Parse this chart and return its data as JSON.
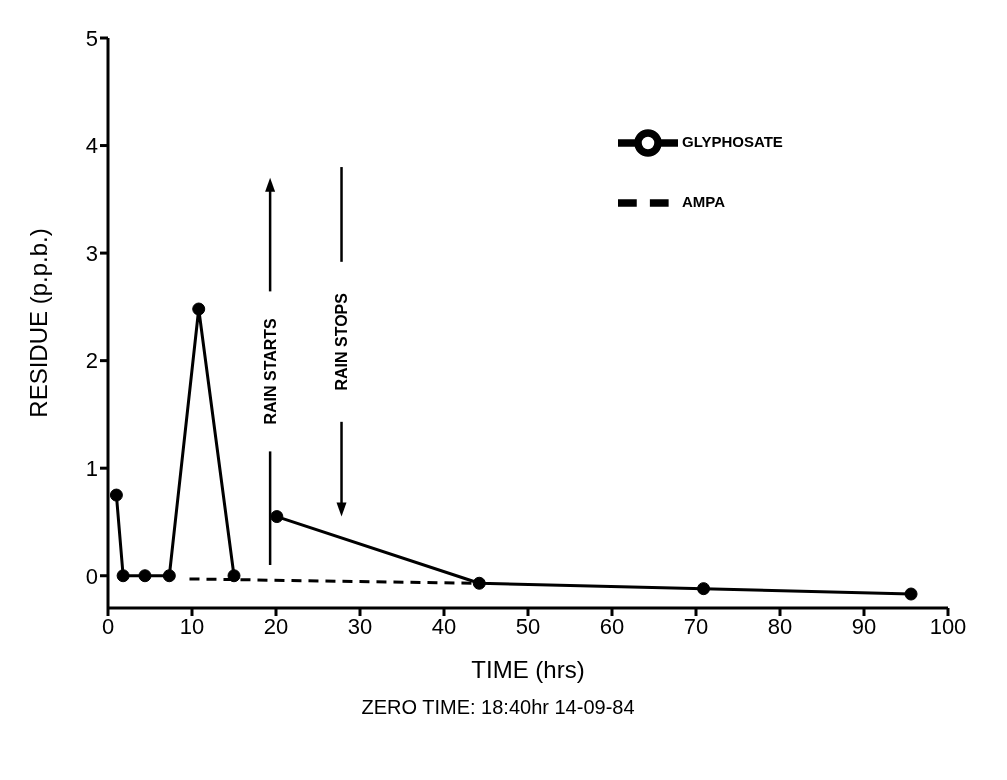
{
  "chart_data": {
    "type": "line",
    "xlabel": "TIME (hrs)",
    "ylabel": "RESIDUE (p.p.b.)",
    "xlim": [
      0,
      100
    ],
    "xticks": [
      0,
      10,
      20,
      30,
      40,
      50,
      60,
      70,
      80,
      90,
      100
    ],
    "ylim": [
      -0.3,
      5
    ],
    "yticks": [
      0,
      1,
      2,
      3,
      4,
      5
    ],
    "grid": false,
    "legend": "top right",
    "marker": "circle",
    "line_style": "solid",
    "series": [
      {
        "name": "GLYPHOSATE",
        "color": "#000000",
        "x": [
          1,
          1.8,
          4.4,
          7.3,
          10.8,
          15,
          17.5,
          20.1,
          44.2,
          70.9,
          95.6
        ],
        "values": [
          0.75,
          0,
          0,
          0,
          2.48,
          0,
          null,
          0.55,
          -0.07,
          -0.12,
          -0.17
        ]
      },
      {
        "name": "AMPA",
        "color": "#000000",
        "marker": "none",
        "line_style": "dashed",
        "x": [
          9.7,
          44
        ],
        "values": [
          -0.03,
          -0.07
        ]
      }
    ],
    "ref_lines": [
      {
        "axis": "x",
        "value": 19.3,
        "label": "RAIN STARTS"
      },
      {
        "axis": "x",
        "value": 27.8,
        "label": "RAIN STOPS"
      }
    ],
    "annotations": [
      "ZERO TIME: 18:40hr 14-09-84"
    ]
  }
}
